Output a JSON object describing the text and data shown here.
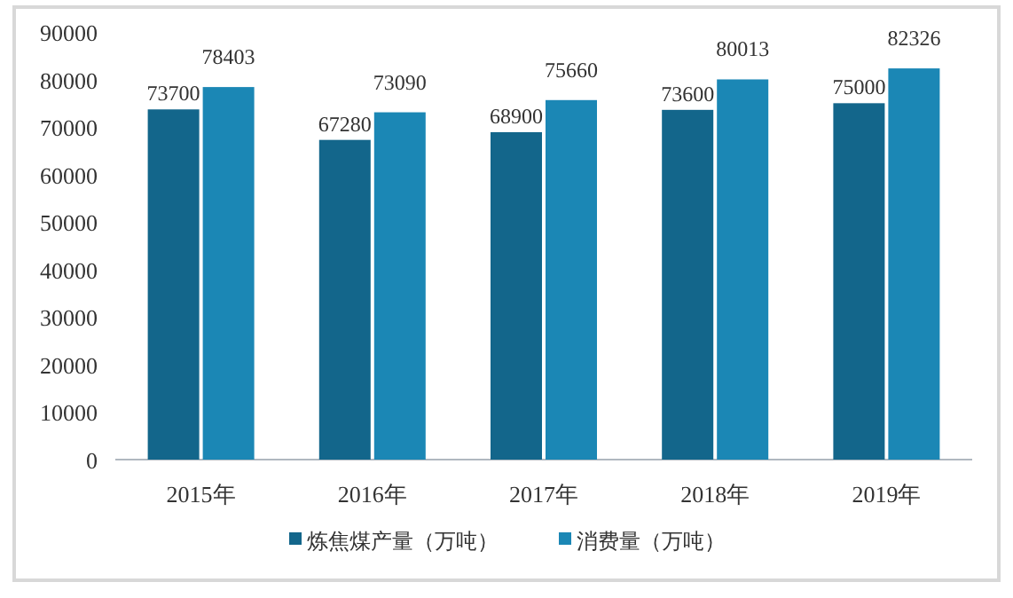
{
  "chart_data": {
    "type": "bar",
    "categories": [
      "2015年",
      "2016年",
      "2017年",
      "2018年",
      "2019年"
    ],
    "series": [
      {
        "name": "炼焦煤产量（万吨）",
        "color": "#13668b",
        "values": [
          73700,
          67280,
          68900,
          73600,
          75000
        ]
      },
      {
        "name": "消费量（万吨）",
        "color": "#1b87b5",
        "values": [
          78403,
          73090,
          75660,
          80013,
          82326
        ]
      }
    ],
    "ylim": [
      0,
      90000
    ],
    "yticks": [
      0,
      10000,
      20000,
      30000,
      40000,
      50000,
      60000,
      70000,
      80000,
      90000
    ],
    "data_labels": true,
    "legend": "bottom",
    "grid": false
  }
}
